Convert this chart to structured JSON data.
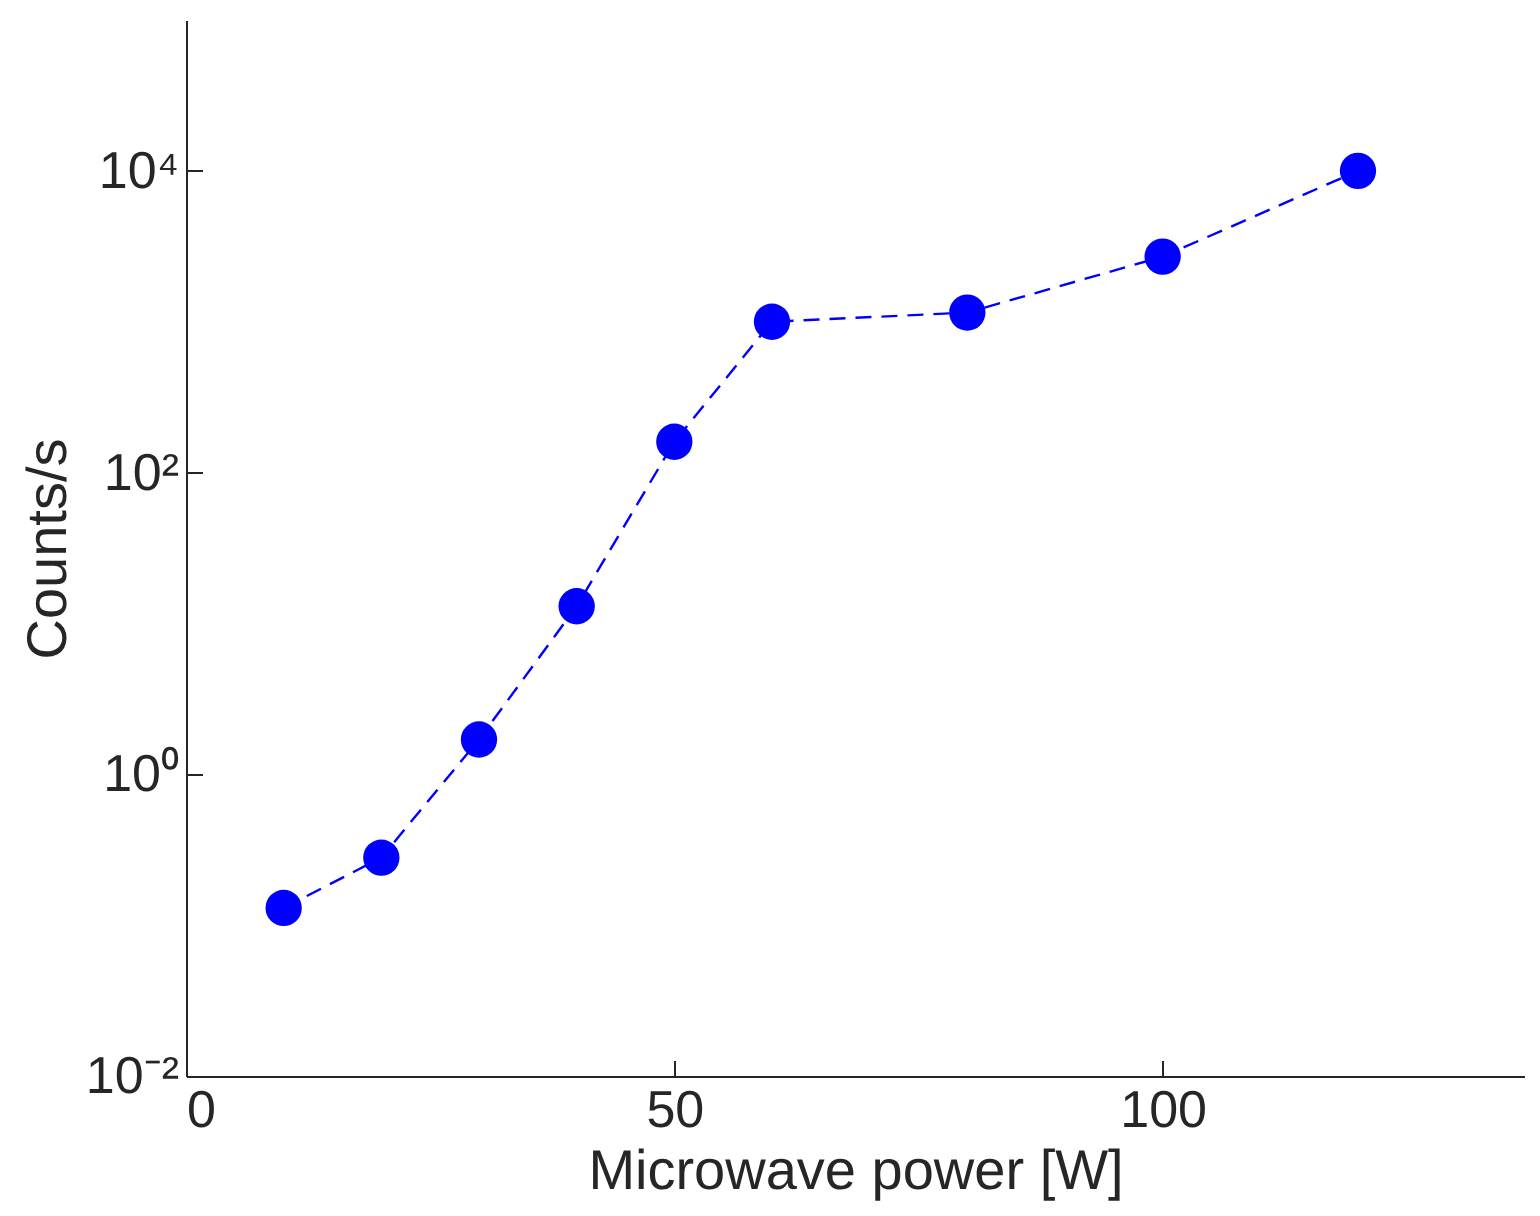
{
  "chart_data": {
    "type": "line",
    "xlabel": "Microwave power [W]",
    "ylabel": "Counts/s",
    "x": [
      10,
      20,
      30,
      40,
      50,
      60,
      80,
      100,
      120
    ],
    "series": [
      {
        "color": "#0000ff",
        "values": [
          0.13,
          0.28,
          1.7,
          13,
          160,
          1000,
          1150,
          2700,
          10000
        ]
      }
    ],
    "xlim": [
      0,
      137
    ],
    "xticks": [
      0,
      50,
      100
    ],
    "ylim": [
      0.01,
      100000
    ],
    "yticks": [
      {
        "value": 0.01,
        "label": "10⁻²"
      },
      {
        "value": 1,
        "label": "10⁰"
      },
      {
        "value": 100,
        "label": "10²"
      },
      {
        "value": 10000,
        "label": "10⁴"
      }
    ],
    "log": "y",
    "grid": false,
    "marker": "circle",
    "line_style": "dashed"
  }
}
